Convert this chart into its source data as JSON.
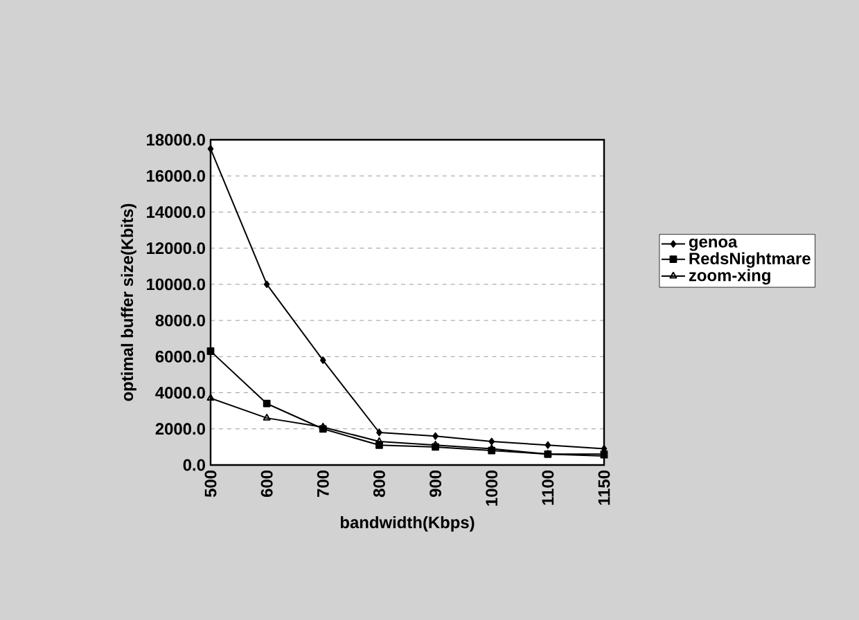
{
  "chart_data": {
    "type": "line",
    "xlabel": "bandwidth(Kbps)",
    "ylabel": "optimal buffer size(Kbits)",
    "categories": [
      "500",
      "600",
      "700",
      "800",
      "900",
      "1000",
      "1100",
      "1150"
    ],
    "series": [
      {
        "name": "genoa",
        "color": "#000000",
        "marker": "diamond",
        "values": [
          17500,
          10000,
          5800,
          1800,
          1600,
          1300,
          1100,
          900
        ]
      },
      {
        "name": "RedsNightmare",
        "color": "#000000",
        "marker": "square",
        "values": [
          6300,
          3400,
          2000,
          1100,
          1000,
          800,
          600,
          600
        ]
      },
      {
        "name": "zoom-xing",
        "color": "#000000",
        "marker": "triangle",
        "values": [
          3700,
          2600,
          2100,
          1300,
          1100,
          900,
          600,
          500
        ]
      }
    ],
    "ylim": [
      0,
      18000
    ],
    "yticks": [
      {
        "value": 0,
        "label": "0.0"
      },
      {
        "value": 2000,
        "label": "2000.0"
      },
      {
        "value": 4000,
        "label": "4000.0"
      },
      {
        "value": 6000,
        "label": "6000.0"
      },
      {
        "value": 8000,
        "label": "8000.0"
      },
      {
        "value": 10000,
        "label": "10000.0"
      },
      {
        "value": 12000,
        "label": "12000.0"
      },
      {
        "value": 14000,
        "label": "14000.0"
      },
      {
        "value": 16000,
        "label": "16000.0"
      },
      {
        "value": 18000,
        "label": "18000.0"
      }
    ],
    "grid": "y",
    "legend": "right"
  }
}
